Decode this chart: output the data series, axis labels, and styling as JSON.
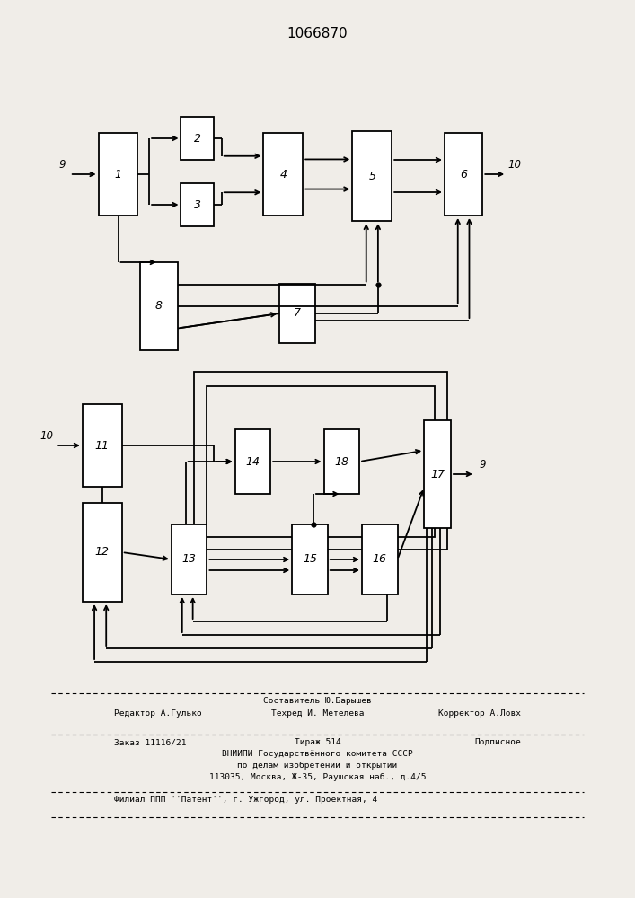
{
  "title": "1066870",
  "bg_color": "#f0ede8",
  "box_facecolor": "white",
  "line_color": "black",
  "lw": 1.3,
  "fs_label": 9,
  "fs_num": 8.5,
  "fs_footer": 6.8,
  "diagram1": {
    "b1": [
      0.155,
      0.76,
      0.062,
      0.092
    ],
    "b2": [
      0.285,
      0.822,
      0.052,
      0.048
    ],
    "b3": [
      0.285,
      0.748,
      0.052,
      0.048
    ],
    "b4": [
      0.415,
      0.76,
      0.062,
      0.092
    ],
    "b5": [
      0.555,
      0.754,
      0.062,
      0.1
    ],
    "b6": [
      0.7,
      0.76,
      0.06,
      0.092
    ],
    "b7": [
      0.44,
      0.618,
      0.056,
      0.066
    ],
    "b8": [
      0.22,
      0.61,
      0.06,
      0.098
    ]
  },
  "diagram2": {
    "outer": [
      0.305,
      0.388,
      0.4,
      0.198
    ],
    "inner": [
      0.325,
      0.402,
      0.36,
      0.168
    ],
    "b11": [
      0.13,
      0.458,
      0.062,
      0.092
    ],
    "b12": [
      0.13,
      0.33,
      0.062,
      0.11
    ],
    "b13": [
      0.27,
      0.338,
      0.056,
      0.078
    ],
    "b14": [
      0.37,
      0.45,
      0.056,
      0.072
    ],
    "b15": [
      0.46,
      0.338,
      0.056,
      0.078
    ],
    "b16": [
      0.57,
      0.338,
      0.056,
      0.078
    ],
    "b17": [
      0.668,
      0.412,
      0.042,
      0.12
    ],
    "b18": [
      0.51,
      0.45,
      0.056,
      0.072
    ]
  },
  "footer": {
    "line1": "Составитель Ю.Барышев",
    "line2a": "Редактор А.Гулько",
    "line2b": "Техред И. Метелева",
    "line2c": "Корректор А.Ловх",
    "line3a": "Заказ 11116/21",
    "line3b": "Тираж 514",
    "line3c": "Подписное",
    "line4": "ВНИИПИ Государствённого комитета СССР",
    "line5": "по делам изобретений и открытий",
    "line6": "113035, Москва, Ж-35, Раушская наб., д.4/5",
    "line7": "Филиал ППП ''Патент'', г. Ужгород, ул. Проектная, 4"
  }
}
